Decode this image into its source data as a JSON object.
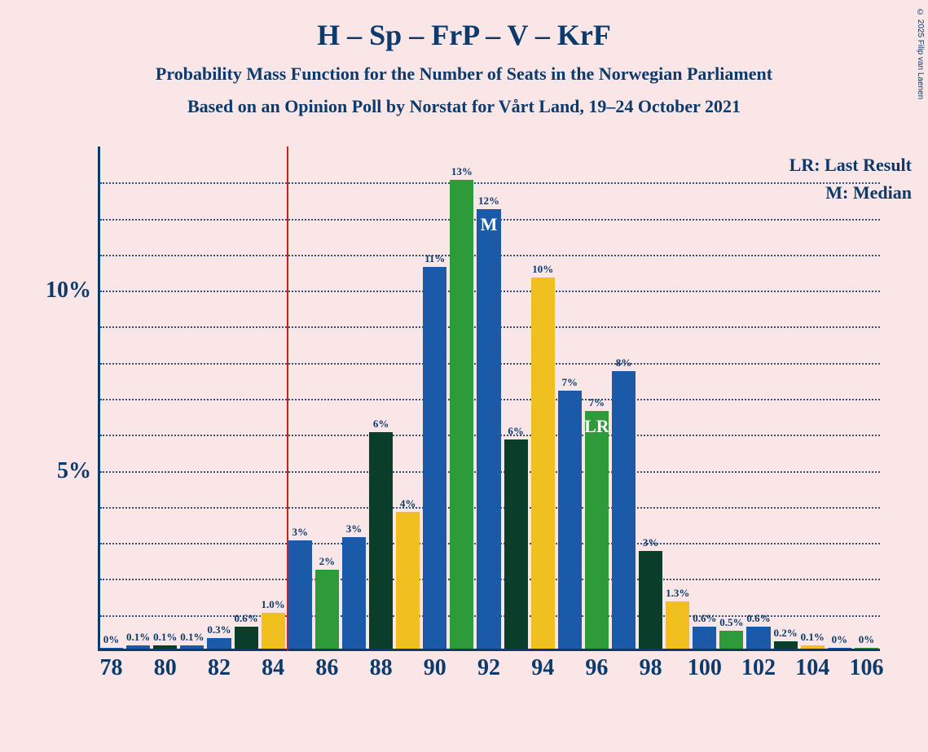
{
  "title": "H – Sp – FrP – V – KrF",
  "title_fontsize": 36,
  "subtitle1": "Probability Mass Function for the Number of Seats in the Norwegian Parliament",
  "subtitle2": "Based on an Opinion Poll by Norstat for Vårt Land, 19–24 October 2021",
  "subtitle_fontsize": 22,
  "legend_lr": "LR: Last Result",
  "legend_m": "M: Median",
  "legend_fontsize": 22,
  "copyright": "© 2025 Filip van Laenen",
  "copyright_fontsize": 10,
  "background_color": "#fae6e6",
  "text_color": "#0b3a6b",
  "lr_line_color": "#cc2020",
  "lr_line_x": 84.5,
  "chart": {
    "type": "bar",
    "x_min": 77.5,
    "x_max": 106.5,
    "y_min": 0,
    "y_max": 14,
    "y_ticks": [
      5,
      10
    ],
    "y_tick_labels": [
      "5%",
      "10%"
    ],
    "y_label_fontsize": 28,
    "minor_grid_step": 1,
    "x_ticks": [
      78,
      80,
      82,
      84,
      86,
      88,
      90,
      92,
      94,
      96,
      98,
      100,
      102,
      104,
      106
    ],
    "x_label_fontsize": 28,
    "bar_width": 0.88,
    "bar_label_fontsize": 13,
    "bars": [
      {
        "x": 78,
        "value": 0.02,
        "label": "0%",
        "color": "#1a5aa8"
      },
      {
        "x": 79,
        "value": 0.1,
        "label": "0.1%",
        "color": "#1a5aa8"
      },
      {
        "x": 80,
        "value": 0.1,
        "label": "0.1%",
        "color": "#0a3d2a"
      },
      {
        "x": 81,
        "value": 0.1,
        "label": "0.1%",
        "color": "#1a5aa8"
      },
      {
        "x": 82,
        "value": 0.3,
        "label": "0.3%",
        "color": "#1a5aa8"
      },
      {
        "x": 83,
        "value": 0.6,
        "label": "0.6%",
        "color": "#0a3d2a"
      },
      {
        "x": 84,
        "value": 1.0,
        "label": "1.0%",
        "color": "#f0c020"
      },
      {
        "x": 85,
        "value": 3.0,
        "label": "3%",
        "color": "#1a5aa8"
      },
      {
        "x": 86,
        "value": 2.2,
        "label": "2%",
        "color": "#2e9b3b"
      },
      {
        "x": 87,
        "value": 3.1,
        "label": "3%",
        "color": "#1a5aa8"
      },
      {
        "x": 88,
        "value": 6.0,
        "label": "6%",
        "color": "#0a3d2a"
      },
      {
        "x": 89,
        "value": 3.8,
        "label": "4%",
        "color": "#f0c020"
      },
      {
        "x": 90,
        "value": 10.6,
        "label": "11%",
        "color": "#1a5aa8"
      },
      {
        "x": 91,
        "value": 13.0,
        "label": "13%",
        "color": "#2e9b3b"
      },
      {
        "x": 92,
        "value": 12.2,
        "label": "12%",
        "color": "#1a5aa8",
        "marker": "M"
      },
      {
        "x": 93,
        "value": 5.8,
        "label": "6%",
        "color": "#0a3d2a"
      },
      {
        "x": 94,
        "value": 10.3,
        "label": "10%",
        "color": "#f0c020"
      },
      {
        "x": 95,
        "value": 7.15,
        "label": "7%",
        "color": "#1a5aa8"
      },
      {
        "x": 96,
        "value": 6.6,
        "label": "7%",
        "color": "#2e9b3b",
        "marker": "LR"
      },
      {
        "x": 97,
        "value": 7.7,
        "label": "8%",
        "color": "#1a5aa8"
      },
      {
        "x": 98,
        "value": 2.7,
        "label": "3%",
        "color": "#0a3d2a"
      },
      {
        "x": 99,
        "value": 1.3,
        "label": "1.3%",
        "color": "#f0c020"
      },
      {
        "x": 100,
        "value": 0.6,
        "label": "0.6%",
        "color": "#1a5aa8"
      },
      {
        "x": 101,
        "value": 0.5,
        "label": "0.5%",
        "color": "#2e9b3b"
      },
      {
        "x": 102,
        "value": 0.6,
        "label": "0.6%",
        "color": "#1a5aa8"
      },
      {
        "x": 103,
        "value": 0.2,
        "label": "0.2%",
        "color": "#0a3d2a"
      },
      {
        "x": 104,
        "value": 0.1,
        "label": "0.1%",
        "color": "#f0c020"
      },
      {
        "x": 105,
        "value": 0.02,
        "label": "0%",
        "color": "#1a5aa8"
      },
      {
        "x": 106,
        "value": 0.02,
        "label": "0%",
        "color": "#2e9b3b"
      }
    ],
    "marker_fontsize": 22
  }
}
